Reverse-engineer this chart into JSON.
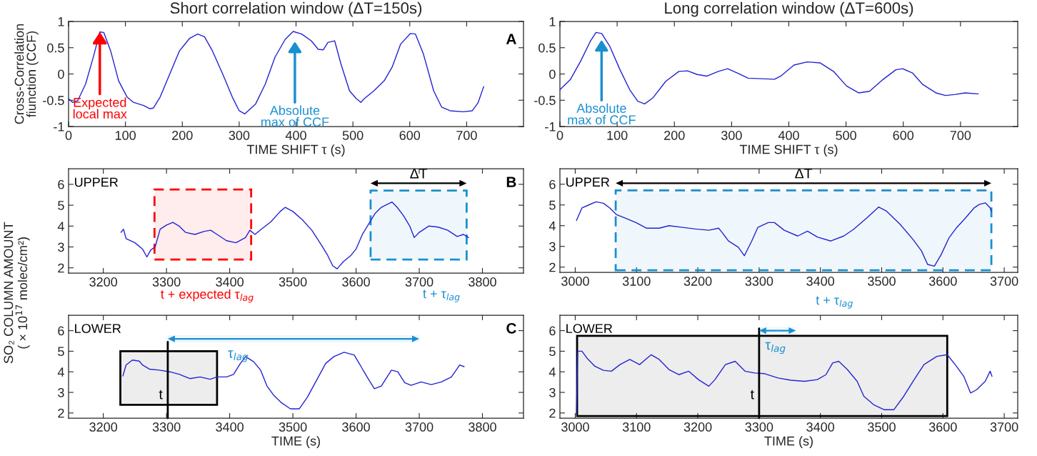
{
  "chart_data": [
    {
      "type": "line",
      "title": "Short correlation window (ΔT=150s)",
      "xlabel": "TIME SHIFT τ (s)",
      "ylabel": "Cross-Correlation\nfiunction (CCF)",
      "xlim": [
        0,
        800
      ],
      "xticks": [
        0,
        100,
        200,
        300,
        400,
        500,
        600,
        700
      ],
      "ylim": [
        -1,
        1
      ],
      "yticks": [
        -1,
        -0.5,
        0,
        0.5,
        1
      ],
      "series": [
        {
          "color": "#2323d2",
          "x": [
            0,
            7,
            16,
            30,
            45,
            55,
            62,
            74,
            88,
            103,
            114,
            132,
            143,
            149,
            161,
            178,
            195,
            213,
            227,
            239,
            253,
            271,
            288,
            300,
            310,
            329,
            346,
            363,
            381,
            395,
            410,
            427,
            439,
            448,
            456,
            468,
            479,
            494,
            506,
            514,
            520,
            537,
            555,
            569,
            584,
            601,
            610,
            624,
            642,
            656,
            671,
            694,
            710,
            720,
            730
          ],
          "values": [
            -0.47,
            -0.54,
            -0.51,
            -0.19,
            0.38,
            0.8,
            0.79,
            0.44,
            -0.13,
            -0.44,
            -0.54,
            -0.6,
            -0.66,
            -0.65,
            -0.44,
            0,
            0.44,
            0.68,
            0.76,
            0.71,
            0.44,
            0,
            -0.44,
            -0.7,
            -0.76,
            -0.57,
            -0.19,
            0.32,
            0.66,
            0.81,
            0.76,
            0.63,
            0.47,
            0.46,
            0.6,
            0.63,
            0.19,
            -0.32,
            -0.47,
            -0.54,
            -0.47,
            -0.32,
            -0.13,
            0.13,
            0.57,
            0.77,
            0.76,
            0.38,
            -0.32,
            -0.63,
            -0.7,
            -0.72,
            -0.7,
            -0.55,
            -0.24
          ]
        }
      ],
      "annotations": [
        {
          "text": "Expected\nlocal max",
          "x": 55,
          "y": 0.8
        },
        "Absolute\nmax of CCF",
        "A"
      ]
    },
    {
      "type": "line",
      "title": "Long correlation window (ΔT=600s)",
      "xlabel": "TIME SHIFT τ (s)",
      "xlim": [
        0,
        800
      ],
      "xticks": [
        0,
        100,
        200,
        300,
        400,
        500,
        600,
        700
      ],
      "ylim": [
        -1,
        1
      ],
      "yticks": [
        -1,
        -0.5,
        0,
        0.5,
        1
      ],
      "series": [
        {
          "color": "#2323d2",
          "x": [
            0,
            18,
            36,
            53,
            63,
            73,
            87,
            105,
            122,
            136,
            148,
            162,
            185,
            208,
            223,
            240,
            257,
            277,
            293,
            312,
            329,
            352,
            375,
            386,
            409,
            432,
            455,
            478,
            501,
            522,
            541,
            564,
            587,
            599,
            616,
            634,
            657,
            674,
            691,
            708,
            731
          ],
          "values": [
            -0.3,
            -0.11,
            0.24,
            0.62,
            0.79,
            0.77,
            0.53,
            0.08,
            -0.3,
            -0.52,
            -0.57,
            -0.46,
            -0.14,
            0.05,
            0.06,
            -0.01,
            -0.04,
            0.05,
            0.1,
            0.01,
            -0.08,
            -0.09,
            -0.1,
            -0.04,
            0.17,
            0.23,
            0.21,
            0.05,
            -0.23,
            -0.36,
            -0.33,
            -0.11,
            0.08,
            0.1,
            0.02,
            -0.2,
            -0.36,
            -0.41,
            -0.39,
            -0.36,
            -0.38
          ]
        }
      ],
      "annotations": [
        "Absolute\nmax of CCF"
      ]
    },
    {
      "type": "line",
      "ylabel": "SO₂ COLUMN AMOUNT\n( × 10$^{17}$ molec/cm²)",
      "xlim": [
        3145,
        3865
      ],
      "xticks": [
        3200,
        3300,
        3400,
        3500,
        3600,
        3700,
        3800
      ],
      "ylim": [
        1.75,
        6.75
      ],
      "yticks": [
        2,
        3,
        4,
        5,
        6
      ],
      "series": [
        {
          "color": "#2323d2",
          "x": [
            3228,
            3232,
            3236,
            3250,
            3262,
            3269,
            3275,
            3282,
            3290,
            3300,
            3310,
            3320,
            3330,
            3345,
            3360,
            3370,
            3380,
            3395,
            3410,
            3425,
            3432,
            3440,
            3450,
            3465,
            3480,
            3488,
            3500,
            3515,
            3530,
            3545,
            3555,
            3563,
            3570,
            3580,
            3592,
            3600,
            3610,
            3620,
            3630,
            3640,
            3650,
            3657,
            3665,
            3675,
            3685,
            3692,
            3700,
            3715,
            3730,
            3745,
            3760,
            3770,
            3778
          ],
          "values": [
            3.7,
            3.85,
            3.4,
            3.2,
            2.9,
            2.52,
            2.85,
            3.0,
            3.85,
            4.05,
            4.18,
            4.0,
            3.7,
            3.6,
            3.75,
            3.8,
            3.6,
            3.3,
            3.2,
            3.45,
            3.8,
            3.6,
            3.85,
            4.2,
            4.7,
            4.9,
            4.7,
            4.3,
            3.8,
            3.1,
            2.6,
            2.1,
            1.95,
            2.3,
            2.6,
            2.9,
            3.6,
            4.1,
            4.6,
            4.9,
            5.05,
            5.15,
            4.9,
            4.5,
            4.0,
            3.45,
            3.7,
            4.0,
            3.95,
            3.8,
            3.5,
            3.6,
            3.45
          ]
        }
      ],
      "bands": [
        {
          "axis": "x",
          "from": 3281,
          "to": 3434,
          "color": "#ff0000"
        },
        {
          "axis": "x",
          "from": 3623,
          "to": 3775,
          "color": "#1a8fd0",
          "label": "ΔT"
        }
      ],
      "annotations": [
        "UPPER",
        "B",
        "t + expected τ$_{lag}$",
        "t + τ$_{lag}$"
      ]
    },
    {
      "type": "line",
      "xlim": [
        2975,
        3722
      ],
      "xticks": [
        3000,
        3100,
        3200,
        3300,
        3400,
        3500,
        3600,
        3700
      ],
      "ylim": [
        1.75,
        6.75
      ],
      "yticks": [
        2,
        3,
        4,
        5,
        6
      ],
      "series": [
        {
          "color": "#2323d2",
          "x": [
            3002,
            3011,
            3022,
            3034,
            3046,
            3056,
            3067,
            3083,
            3099,
            3116,
            3137,
            3153,
            3175,
            3196,
            3218,
            3234,
            3240,
            3250,
            3266,
            3276,
            3288,
            3298,
            3315,
            3325,
            3341,
            3363,
            3379,
            3395,
            3417,
            3438,
            3454,
            3476,
            3495,
            3508,
            3530,
            3551,
            3565,
            3575,
            3586,
            3597,
            3610,
            3621,
            3637,
            3651,
            3659,
            3669,
            3677,
            3679
          ],
          "values": [
            4.25,
            4.86,
            5.0,
            5.15,
            5.08,
            4.86,
            4.54,
            4.35,
            4.15,
            3.88,
            3.88,
            4.0,
            3.92,
            3.84,
            3.78,
            3.88,
            3.66,
            3.26,
            2.96,
            2.55,
            3.26,
            3.92,
            4.15,
            4.15,
            3.78,
            3.5,
            3.74,
            3.45,
            3.26,
            3.5,
            3.82,
            4.38,
            4.9,
            4.7,
            4.07,
            3.34,
            2.78,
            2.13,
            2.05,
            2.6,
            3.42,
            3.86,
            4.38,
            4.86,
            5.02,
            5.1,
            4.86,
            4.7
          ]
        }
      ],
      "bands": [
        {
          "axis": "x",
          "from": 3066,
          "to": 3679,
          "color": "#1a8fd0",
          "label": "ΔT"
        }
      ],
      "annotations": [
        "UPPER",
        "t + τ$_{lag}$"
      ]
    },
    {
      "type": "line",
      "xlabel": "TIME (s)",
      "xlim": [
        3145,
        3865
      ],
      "xticks": [
        3200,
        3300,
        3400,
        3500,
        3600,
        3700,
        3800
      ],
      "ylim": [
        1.75,
        6.75
      ],
      "yticks": [
        2,
        3,
        4,
        5,
        6
      ],
      "series": [
        {
          "color": "#2323d2",
          "x": [
            3231,
            3236,
            3246,
            3257,
            3262,
            3273,
            3289,
            3305,
            3321,
            3337,
            3353,
            3369,
            3380,
            3395,
            3406,
            3417,
            3425,
            3438,
            3449,
            3459,
            3470,
            3481,
            3496,
            3510,
            3523,
            3539,
            3552,
            3565,
            3581,
            3597,
            3608,
            3619,
            3629,
            3640,
            3656,
            3666,
            3677,
            3687,
            3703,
            3719,
            3735,
            3751,
            3764,
            3771
          ],
          "values": [
            3.8,
            4.33,
            4.57,
            4.52,
            4.33,
            4.13,
            4.08,
            4.0,
            3.87,
            3.67,
            3.75,
            3.64,
            3.75,
            3.75,
            3.87,
            4.41,
            4.74,
            4.49,
            4.08,
            3.31,
            2.85,
            2.52,
            2.2,
            2.2,
            2.77,
            3.67,
            4.41,
            4.74,
            4.95,
            4.82,
            4.25,
            3.67,
            3.18,
            3.31,
            4.08,
            4.0,
            3.47,
            3.34,
            3.51,
            3.38,
            3.51,
            3.75,
            4.33,
            4.25
          ]
        }
      ],
      "ref_lines": [
        {
          "axis": "x",
          "value": 3302,
          "label": "t",
          "color": "#000000"
        }
      ],
      "bands": [
        {
          "axis": "x",
          "from": 3227,
          "to": 3380,
          "color": "#000000"
        },
        {
          "axis": "x",
          "from": 3302,
          "to": 3700,
          "color": "#1a8fd0",
          "label": "τ$_{lag}$"
        }
      ],
      "annotations": [
        "LOWER",
        "C"
      ]
    },
    {
      "type": "line",
      "xlabel": "TIME (s)",
      "xlim": [
        2975,
        3722
      ],
      "xticks": [
        3000,
        3100,
        3200,
        3300,
        3400,
        3500,
        3600,
        3700
      ],
      "ylim": [
        1.75,
        6.75
      ],
      "yticks": [
        2,
        3,
        4,
        5,
        6
      ],
      "series": [
        {
          "color": "#2323d2",
          "x": [
            3002,
            3004,
            3011,
            3019,
            3032,
            3046,
            3059,
            3073,
            3089,
            3105,
            3124,
            3137,
            3153,
            3169,
            3185,
            3201,
            3218,
            3228,
            3245,
            3261,
            3277,
            3293,
            3309,
            3331,
            3352,
            3374,
            3395,
            3409,
            3420,
            3430,
            3444,
            3460,
            3471,
            3487,
            3504,
            3520,
            3536,
            3553,
            3569,
            3590,
            3607,
            3620,
            3634,
            3645,
            3655,
            3669,
            3677,
            3680
          ],
          "values": [
            2.0,
            5.0,
            5.0,
            4.67,
            4.27,
            4.07,
            4.03,
            4.35,
            4.6,
            4.35,
            4.83,
            4.6,
            4.11,
            3.86,
            4.03,
            3.62,
            3.3,
            3.62,
            4.35,
            4.51,
            4.03,
            3.94,
            3.91,
            3.7,
            3.59,
            3.54,
            3.62,
            3.86,
            4.43,
            4.51,
            4.11,
            3.54,
            2.81,
            2.4,
            2.16,
            2.16,
            2.81,
            3.62,
            4.35,
            4.75,
            4.83,
            4.35,
            3.78,
            2.97,
            3.13,
            3.54,
            4.03,
            3.78
          ]
        }
      ],
      "ref_lines": [
        {
          "axis": "x",
          "value": 3300,
          "label": "t",
          "color": "#000000"
        }
      ],
      "bands": [
        {
          "axis": "x",
          "from": 3003,
          "to": 3607,
          "color": "#000000"
        },
        {
          "axis": "x",
          "from": 3300,
          "to": 3360,
          "color": "#1a8fd0",
          "label": "τ$_{lag}$"
        }
      ],
      "annotations": [
        "LOWER"
      ]
    }
  ]
}
